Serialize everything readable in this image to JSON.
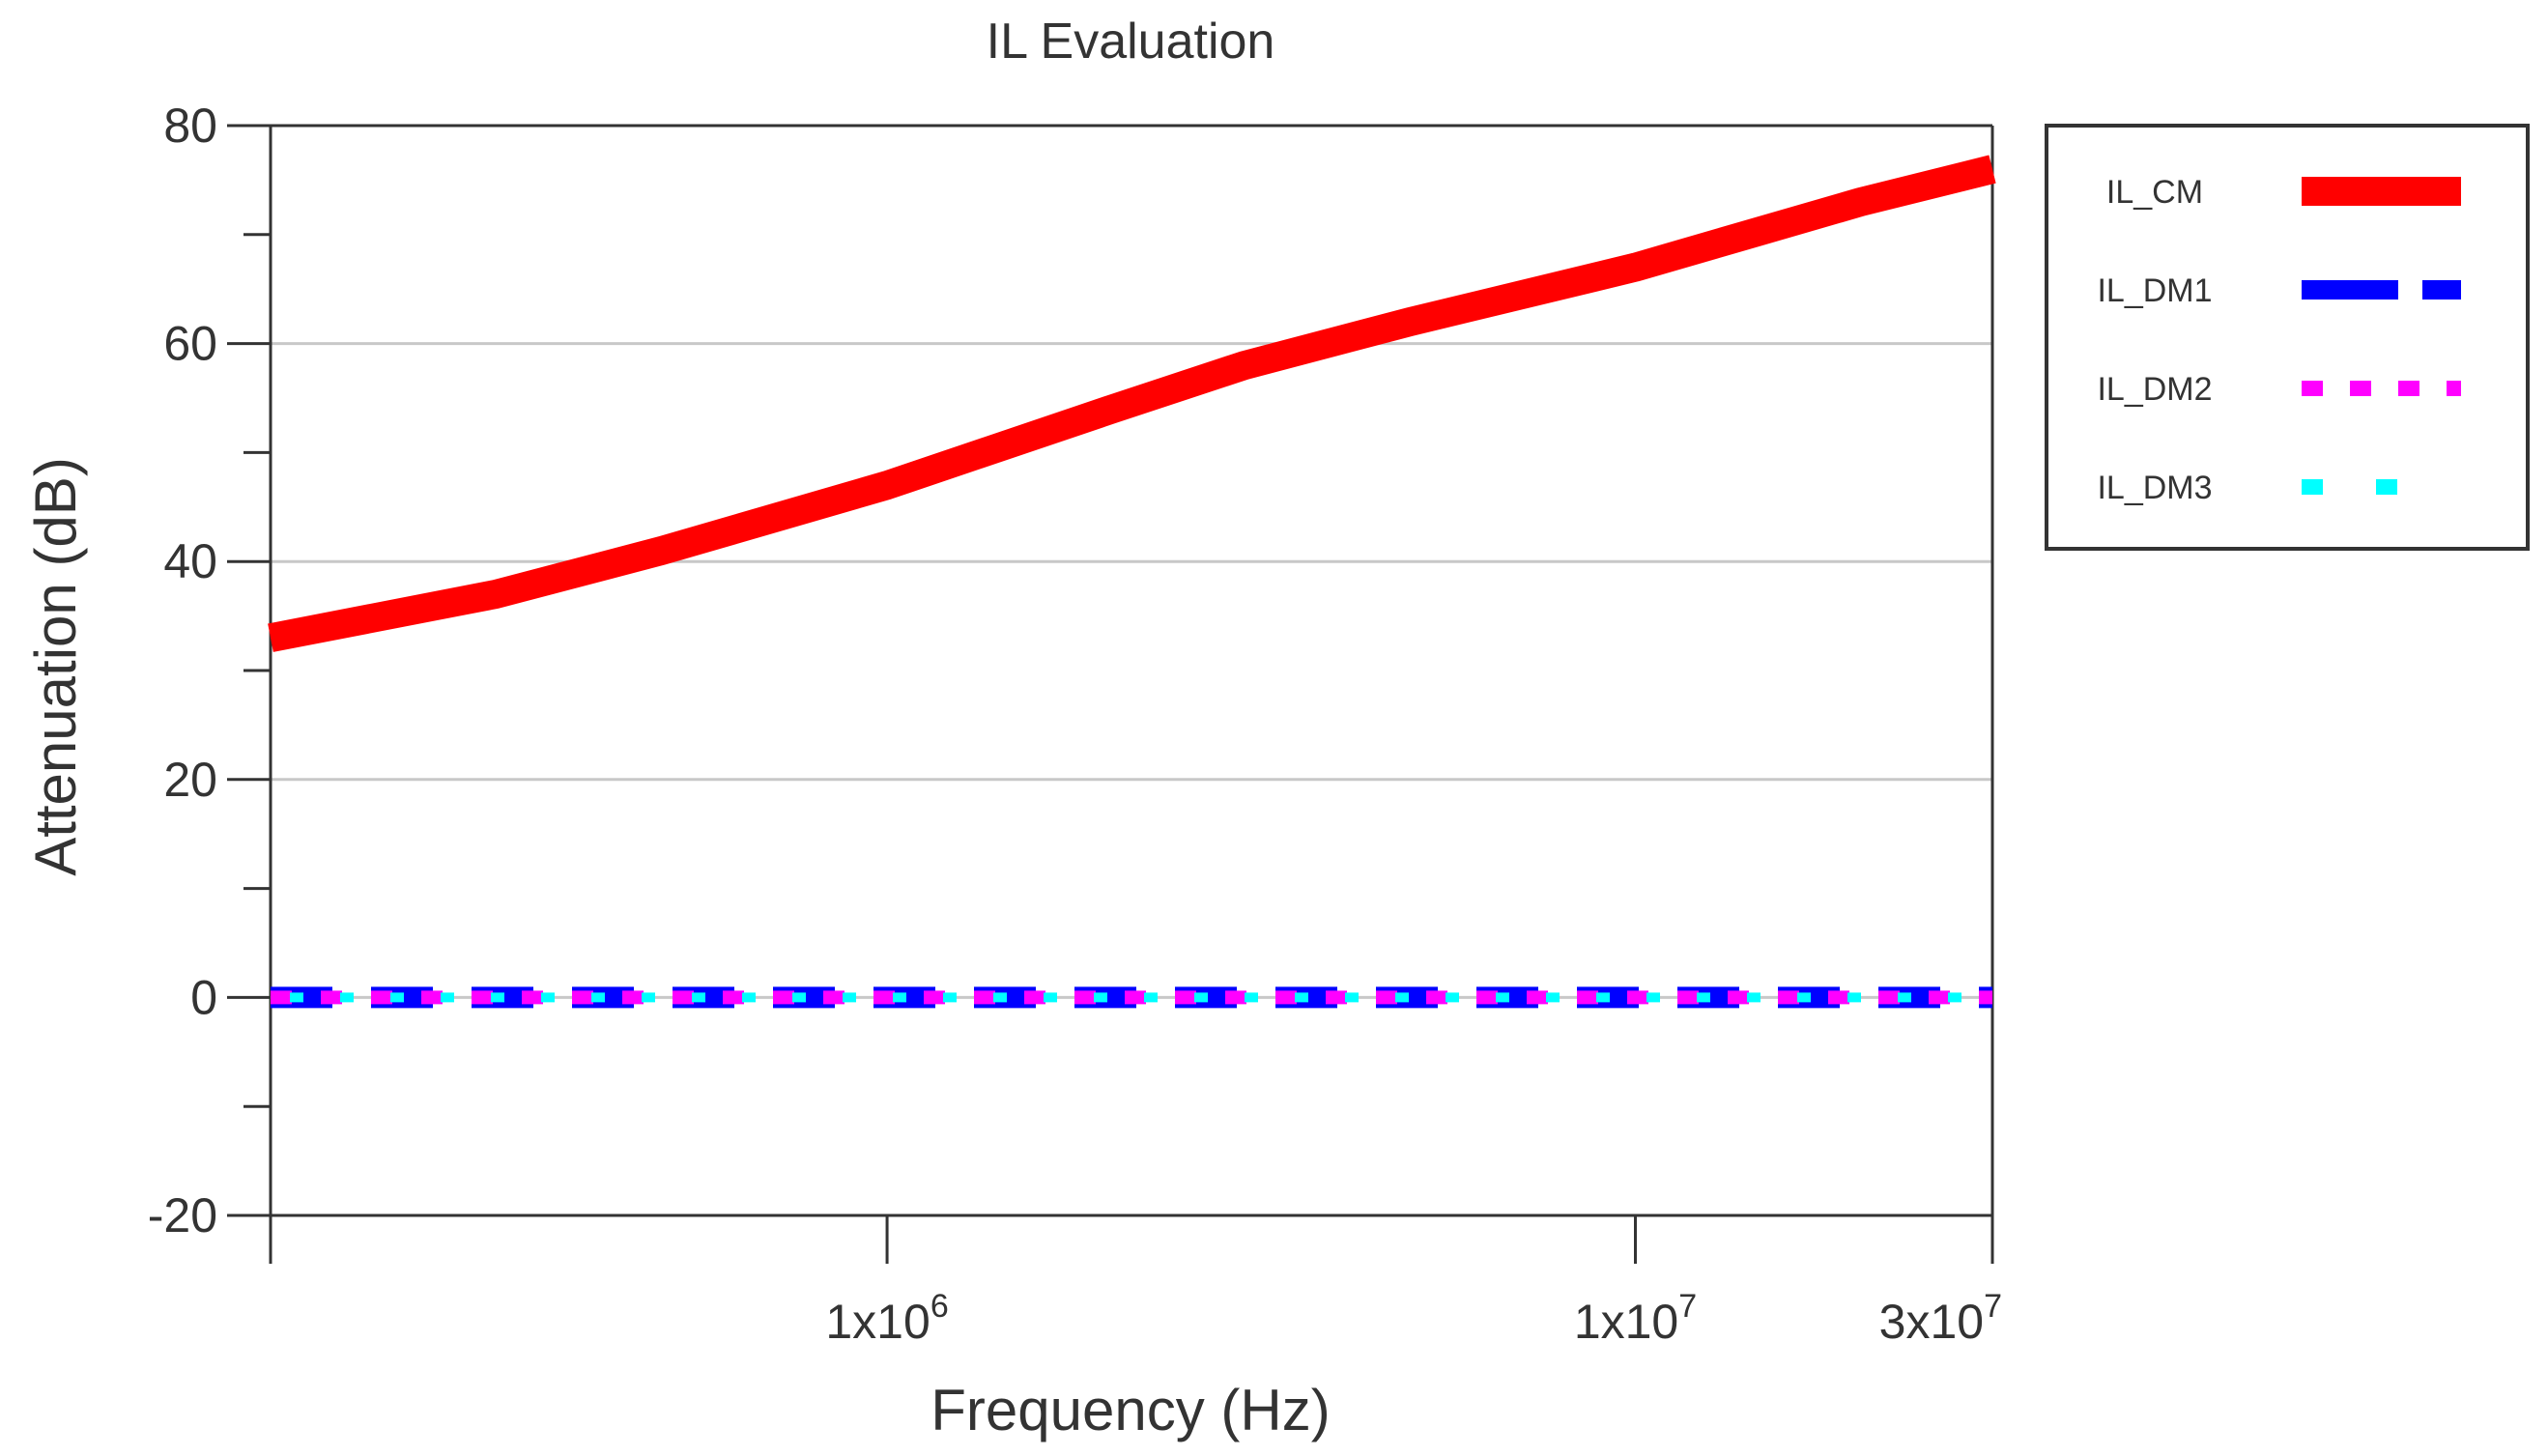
{
  "chart_data": {
    "type": "line",
    "title": "IL Evaluation",
    "xlabel": "Frequency (Hz)",
    "ylabel": "Attenuation (dB)",
    "xscale": "log",
    "xlim": [
      150000,
      30000000
    ],
    "ylim": [
      -20,
      80
    ],
    "grid": true,
    "legend_position": "right",
    "y_ticks": [
      {
        "value": -20,
        "label": "-20"
      },
      {
        "value": 0,
        "label": "0"
      },
      {
        "value": 20,
        "label": "20"
      },
      {
        "value": 40,
        "label": "40"
      },
      {
        "value": 60,
        "label": "60"
      },
      {
        "value": 80,
        "label": "80"
      }
    ],
    "x_ticks": [
      {
        "value": 1000000,
        "base": "1x10",
        "exp": "6"
      },
      {
        "value": 10000000,
        "base": "1x10",
        "exp": "7"
      },
      {
        "value": 30000000,
        "base": "3x10",
        "exp": "7"
      }
    ],
    "series": [
      {
        "name": "IL_CM",
        "color": "#ff0000",
        "style": "solid",
        "x": [
          150000,
          300000,
          500000,
          1000000,
          2000000,
          3000000,
          5000000,
          10000000,
          20000000,
          30000000
        ],
        "y": [
          33,
          37,
          41,
          47,
          54,
          58,
          62,
          67,
          73,
          76
        ]
      },
      {
        "name": "IL_DM1",
        "color": "#0000ff",
        "style": "dashed",
        "x": [
          150000,
          30000000
        ],
        "y": [
          0,
          0
        ]
      },
      {
        "name": "IL_DM2",
        "color": "#ff00ff",
        "style": "dotted",
        "x": [
          150000,
          30000000
        ],
        "y": [
          0,
          0
        ]
      },
      {
        "name": "IL_DM3",
        "color": "#00ffff",
        "style": "dotted",
        "x": [
          150000,
          30000000
        ],
        "y": [
          0,
          0
        ]
      }
    ]
  }
}
